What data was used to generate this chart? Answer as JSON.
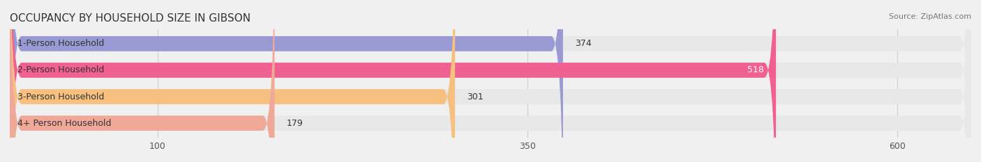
{
  "title": "OCCUPANCY BY HOUSEHOLD SIZE IN GIBSON",
  "source": "Source: ZipAtlas.com",
  "categories": [
    "1-Person Household",
    "2-Person Household",
    "3-Person Household",
    "4+ Person Household"
  ],
  "values": [
    374,
    518,
    301,
    179
  ],
  "bar_colors": [
    "#9999d4",
    "#f06090",
    "#f5c080",
    "#f0a898"
  ],
  "label_colors": [
    "#333333",
    "#ffffff",
    "#333333",
    "#333333"
  ],
  "xlim": [
    0,
    650
  ],
  "xticks": [
    100,
    350,
    600
  ],
  "background_color": "#f0f0f0",
  "bar_bg_color": "#e8e8e8",
  "bar_height": 0.55,
  "title_fontsize": 11,
  "label_fontsize": 9,
  "tick_fontsize": 9,
  "source_fontsize": 8
}
